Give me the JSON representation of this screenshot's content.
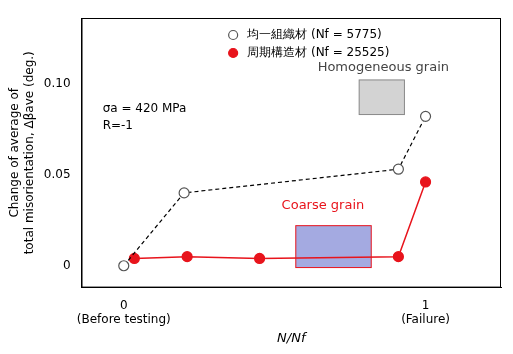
{
  "chart_data": {
    "type": "line",
    "xlabel": "N/Nf",
    "ylabel": "Change of average of\ntotal misorientation, Δβave (deg.)",
    "xlim": [
      -0.14,
      1.25
    ],
    "ylim": [
      -0.012,
      0.136
    ],
    "xticks": [
      {
        "value": 0,
        "label": "0\n(Before testing)"
      },
      {
        "value": 1,
        "label": "1\n(Failure)"
      }
    ],
    "yticks": [
      0,
      0.05,
      {
        "value": 0.1,
        "label": "0.10"
      }
    ],
    "grid": false,
    "legend": "upper center",
    "annotations": [
      "σa = 420 MPa",
      "R=-1",
      "Homogeneous grain",
      "Coarse grain"
    ],
    "series": [
      {
        "name": "均一組織材 (Nf = 5775)",
        "color": "#000000",
        "marker": "open_circle",
        "line_style": "dashed",
        "x": [
          0,
          0.2,
          0.91,
          1
        ],
        "values": [
          0,
          0.04,
          0.053,
          0.082
        ]
      },
      {
        "name": "周期構造材 (Nf = 25525)",
        "color": "#e8141c",
        "marker": "filled_circle",
        "line_style": "solid",
        "x": [
          0.035,
          0.21,
          0.45,
          0.91,
          1
        ],
        "values": [
          0.004,
          0.005,
          0.004,
          0.005,
          0.046
        ]
      }
    ]
  }
}
